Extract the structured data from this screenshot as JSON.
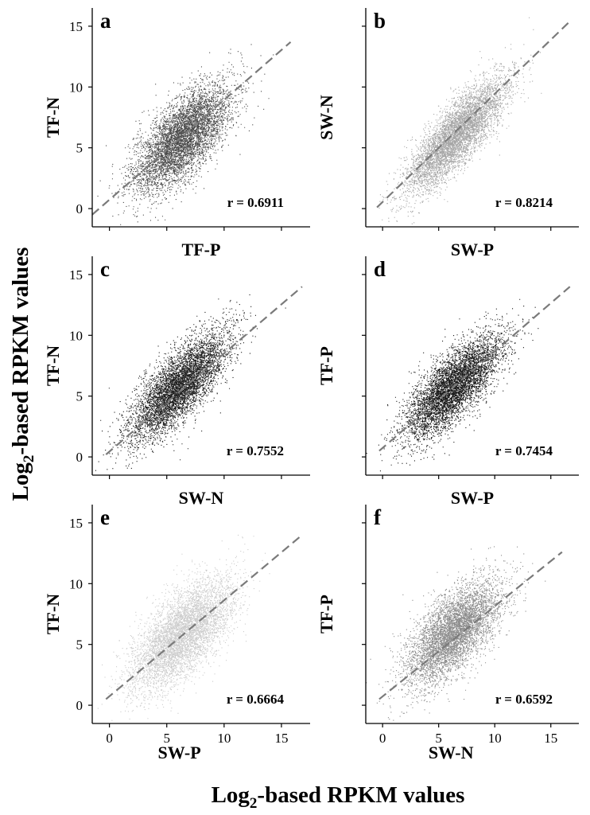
{
  "figure": {
    "ylabel_main": "Log",
    "ylabel_sub": "2",
    "ylabel_rest": "-based RPKM values",
    "xlabel_main": "Log",
    "xlabel_sub": "2",
    "xlabel_rest": "-based RPKM values"
  },
  "chart_data": [
    {
      "type": "scatter",
      "panel": "a",
      "xlabel": "TF-P",
      "ylabel": "TF-N",
      "r_label": "r = 0.6911",
      "color": "#4a4a4a",
      "xlim": [
        -1.5,
        17.5
      ],
      "ylim": [
        -1.5,
        16.5
      ],
      "yticks": [
        "0",
        "5",
        "10",
        "15"
      ],
      "xticks": [],
      "center": [
        6.3,
        5.8
      ],
      "spread": [
        2.1,
        2.2
      ],
      "r": 0.6911,
      "n": 5500,
      "fit": {
        "x0": -1.5,
        "y0": -0.5,
        "x1": 15.8,
        "y1": 13.7
      }
    },
    {
      "type": "scatter",
      "panel": "b",
      "xlabel": "SW-P",
      "ylabel": "SW-N",
      "r_label": "r = 0.8214",
      "color": "#a6a6a6",
      "xlim": [
        -1.5,
        17.5
      ],
      "ylim": [
        -1.5,
        16.5
      ],
      "yticks": [],
      "xticks": [],
      "center": [
        6.5,
        6.0
      ],
      "spread": [
        2.2,
        2.3
      ],
      "r": 0.8214,
      "n": 5500,
      "fit": {
        "x0": -0.5,
        "y0": 0.1,
        "x1": 16.7,
        "y1": 15.4
      }
    },
    {
      "type": "scatter",
      "panel": "c",
      "xlabel": "SW-N",
      "ylabel": "TF-N",
      "r_label": "r = 0.7552",
      "color": "#1e1e1e",
      "xlim": [
        -1.5,
        17.5
      ],
      "ylim": [
        -1.5,
        16.5
      ],
      "yticks": [
        "0",
        "5",
        "10",
        "15"
      ],
      "xticks": [],
      "center": [
        6.0,
        5.8
      ],
      "spread": [
        2.1,
        2.2
      ],
      "r": 0.7552,
      "n": 5500,
      "fit": {
        "x0": -0.3,
        "y0": 0.2,
        "x1": 16.8,
        "y1": 14.0
      }
    },
    {
      "type": "scatter",
      "panel": "d",
      "xlabel": "SW-P",
      "ylabel": "TF-P",
      "r_label": "r = 0.7454",
      "color": "#1a1a1a",
      "xlim": [
        -1.5,
        17.5
      ],
      "ylim": [
        -1.5,
        16.5
      ],
      "yticks": [],
      "xticks": [],
      "center": [
        6.3,
        5.8
      ],
      "spread": [
        2.1,
        2.1
      ],
      "r": 0.7454,
      "n": 5500,
      "fit": {
        "x0": -0.3,
        "y0": 0.5,
        "x1": 16.7,
        "y1": 14.0
      }
    },
    {
      "type": "scatter",
      "panel": "e",
      "xlabel": "SW-P",
      "ylabel": "TF-N",
      "r_label": "r = 0.6664",
      "color": "#cccccc",
      "xlim": [
        -1.5,
        17.5
      ],
      "ylim": [
        -1.5,
        16.5
      ],
      "yticks": [
        "0",
        "5",
        "10",
        "15"
      ],
      "xticks": [
        "0",
        "5",
        "10",
        "15"
      ],
      "center": [
        6.3,
        5.8
      ],
      "spread": [
        2.2,
        2.3
      ],
      "r": 0.6664,
      "n": 5500,
      "fit": {
        "x0": -0.3,
        "y0": 0.5,
        "x1": 16.8,
        "y1": 14.0
      }
    },
    {
      "type": "scatter",
      "panel": "f",
      "xlabel": "SW-N",
      "ylabel": "TF-P",
      "r_label": "r = 0.6592",
      "color": "#8c8c8c",
      "xlim": [
        -1.5,
        17.5
      ],
      "ylim": [
        -1.5,
        16.5
      ],
      "yticks": [],
      "xticks": [
        "0",
        "5",
        "10",
        "15"
      ],
      "center": [
        6.3,
        6.0
      ],
      "spread": [
        2.1,
        2.1
      ],
      "r": 0.6592,
      "n": 5500,
      "fit": {
        "x0": -0.3,
        "y0": 0.5,
        "x1": 16.0,
        "y1": 12.6
      }
    }
  ]
}
